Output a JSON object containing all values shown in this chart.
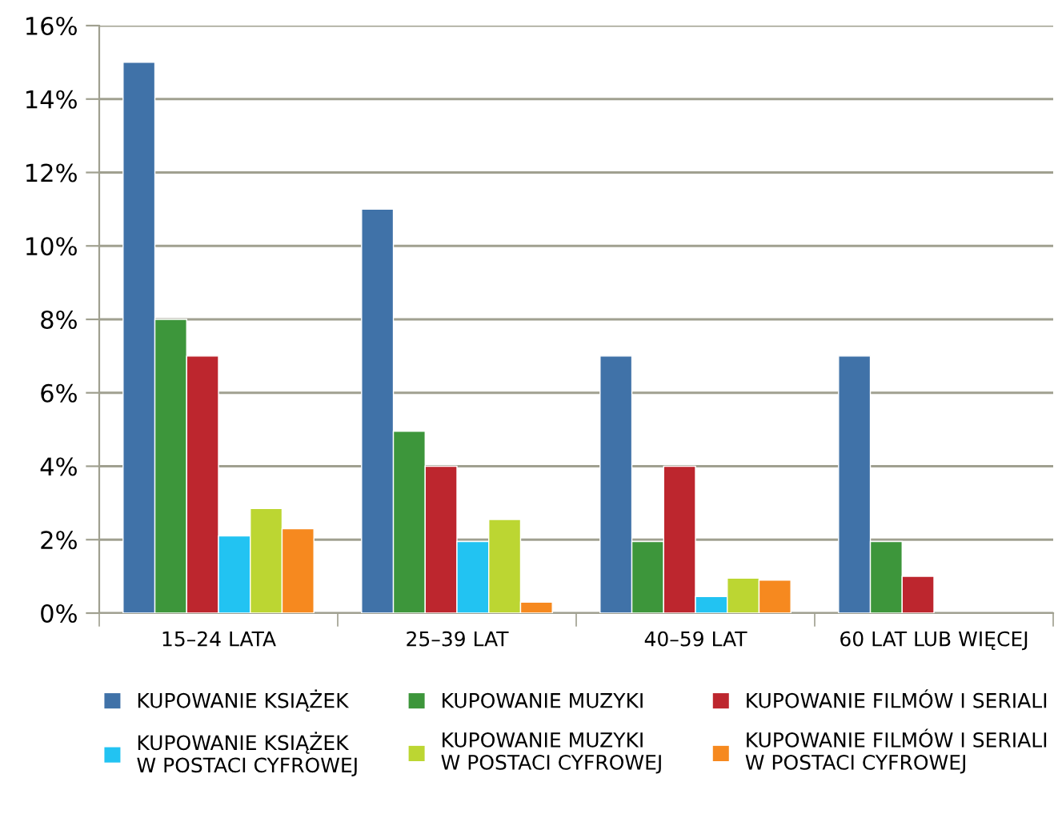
{
  "chart_data": {
    "type": "bar",
    "categories": [
      "15–24 LATA",
      "25–39 LAT",
      "40–59 LAT",
      "60 LAT LUB WIĘCEJ"
    ],
    "series": [
      {
        "name": "KUPOWANIE KSIĄŻEK",
        "color": "#4072a8",
        "values": [
          15,
          11,
          7,
          7
        ]
      },
      {
        "name": "KUPOWANIE MUZYKI",
        "color": "#3d963b",
        "values": [
          8,
          4.95,
          1.95,
          1.95
        ]
      },
      {
        "name": "KUPOWANIE FILMÓW I SERIALI",
        "color": "#bd262e",
        "values": [
          7,
          4,
          4,
          1
        ]
      },
      {
        "name": "KUPOWANIE KSIĄŻEK\nW POSTACI CYFROWEJ",
        "color": "#22c3f2",
        "values": [
          2.1,
          1.95,
          0.45,
          null
        ]
      },
      {
        "name": "KUPOWANIE MUZYKI\nW POSTACI CYFROWEJ",
        "color": "#bcd632",
        "values": [
          2.85,
          2.55,
          0.95,
          null
        ]
      },
      {
        "name": "KUPOWANIE FILMÓW I SERIALI\nW POSTACI CYFROWEJ",
        "color": "#f6891f",
        "values": [
          2.3,
          0.3,
          0.9,
          null
        ]
      }
    ],
    "ylim": [
      0,
      16
    ],
    "yticks": [
      {
        "value": 0,
        "label": "0%"
      },
      {
        "value": 2,
        "label": "2%"
      },
      {
        "value": 4,
        "label": "4%"
      },
      {
        "value": 6,
        "label": "6%"
      },
      {
        "value": 8,
        "label": "8%"
      },
      {
        "value": 10,
        "label": "10%"
      },
      {
        "value": 12,
        "label": "12%"
      },
      {
        "value": 14,
        "label": "14%"
      },
      {
        "value": 16,
        "label": "16%"
      }
    ],
    "grid": "y",
    "legend": "bottom"
  }
}
